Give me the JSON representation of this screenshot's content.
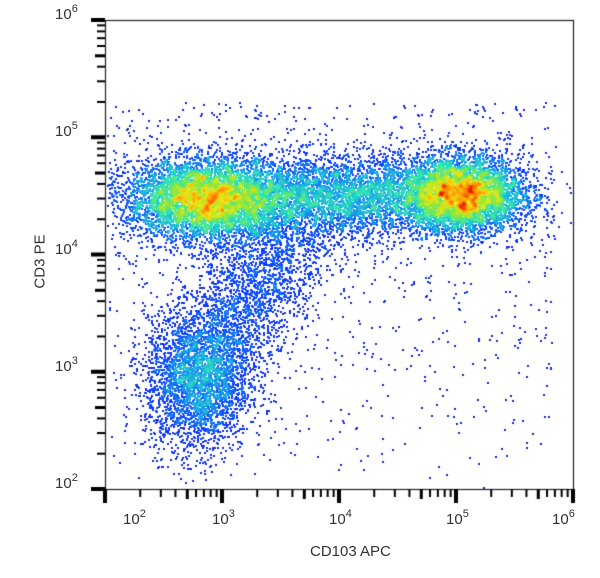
{
  "chart_data": {
    "type": "scatter",
    "subtype": "flow-cytometry pseudocolor density dot plot",
    "title": "",
    "xlabel": "CD103 APC",
    "ylabel": "CD3 PE",
    "xscale": "log",
    "yscale": "log",
    "xlim": [
      100,
      1000000
    ],
    "ylim": [
      100,
      1000000
    ],
    "x_ticks": [
      {
        "base": "10",
        "exp": "2",
        "value": 100
      },
      {
        "base": "10",
        "exp": "3",
        "value": 1000
      },
      {
        "base": "10",
        "exp": "4",
        "value": 10000
      },
      {
        "base": "10",
        "exp": "5",
        "value": 100000
      },
      {
        "base": "10",
        "exp": "6",
        "value": 1000000
      }
    ],
    "y_ticks": [
      {
        "base": "10",
        "exp": "6",
        "value": 1000000
      },
      {
        "base": "10",
        "exp": "5",
        "value": 100000
      },
      {
        "base": "10",
        "exp": "4",
        "value": 10000
      },
      {
        "base": "10",
        "exp": "3",
        "value": 1000
      },
      {
        "base": "10",
        "exp": "2",
        "value": 100
      }
    ],
    "grid": false,
    "legend": "none",
    "color_scale": [
      "#1a1ab4",
      "#0a3cff",
      "#19a9e6",
      "#2ee6b4",
      "#8ee63c",
      "#f0e614",
      "#ff8c00",
      "#e61e00"
    ],
    "populations": [
      {
        "name": "CD3+ CD103- cluster",
        "center_x": 700,
        "center_y": 30000,
        "spread_log_x": 0.33,
        "spread_log_y": 0.17,
        "weight": 0.3,
        "peak_density": "high"
      },
      {
        "name": "CD3+ CD103+ cluster",
        "center_x": 110000,
        "center_y": 33000,
        "spread_log_x": 0.26,
        "spread_log_y": 0.16,
        "weight": 0.26,
        "peak_density": "high"
      },
      {
        "name": "CD3+ bridge",
        "center_x": 10000,
        "center_y": 32000,
        "spread_log_x": 0.65,
        "spread_log_y": 0.17,
        "weight": 0.22,
        "peak_density": "medium"
      },
      {
        "name": "CD3- CD103- cluster",
        "center_x": 600,
        "center_y": 800,
        "spread_log_x": 0.22,
        "spread_log_y": 0.3,
        "weight": 0.09,
        "peak_density": "low"
      },
      {
        "name": "diagonal transition",
        "from": [
          600,
          800
        ],
        "to": [
          4000,
          20000
        ],
        "weight": 0.09,
        "peak_density": "low"
      },
      {
        "name": "scattered background",
        "x_range": [
          100,
          700000
        ],
        "y_range": [
          100,
          200000
        ],
        "weight": 0.04,
        "peak_density": "very low"
      }
    ],
    "approx_event_count": 30000
  }
}
